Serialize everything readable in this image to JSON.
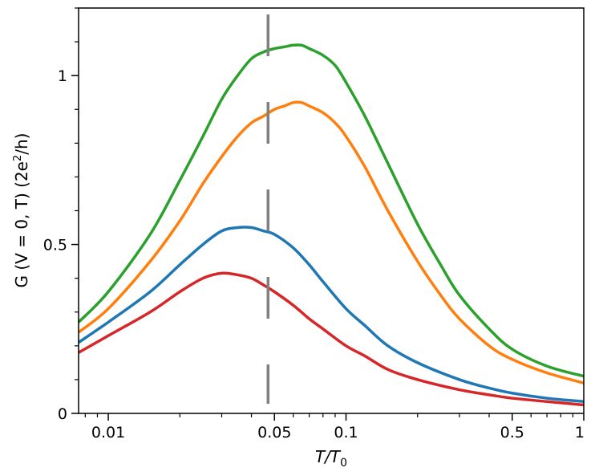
{
  "chart_data": {
    "type": "line",
    "xscale": "log",
    "xlim": [
      0.0075,
      1.0
    ],
    "ylim": [
      0,
      1.2
    ],
    "xlabel": {
      "main": "T/T",
      "sub": "0"
    },
    "ylabel": {
      "prefix": "G (V = 0, T) (2e",
      "sup": "2",
      "suffix": "/h)"
    },
    "xticks": [
      {
        "value": 0.01,
        "label": "0.01"
      },
      {
        "value": 0.05,
        "label": "0.05"
      },
      {
        "value": 0.1,
        "label": "0.1"
      },
      {
        "value": 0.5,
        "label": "0.5"
      },
      {
        "value": 1,
        "label": "1"
      }
    ],
    "yticks": [
      {
        "value": 0,
        "label": "0"
      },
      {
        "value": 0.5,
        "label": "0.5"
      },
      {
        "value": 1,
        "label": "1"
      }
    ],
    "grid": false,
    "legend": "none",
    "reference_line": {
      "x": 0.047,
      "style": "dashed",
      "color": "#808080"
    },
    "series": [
      {
        "color": "#2ca02c",
        "points": [
          [
            0.0075,
            0.27
          ],
          [
            0.01,
            0.36
          ],
          [
            0.015,
            0.53
          ],
          [
            0.02,
            0.69
          ],
          [
            0.025,
            0.82
          ],
          [
            0.03,
            0.93
          ],
          [
            0.035,
            1.0
          ],
          [
            0.04,
            1.05
          ],
          [
            0.045,
            1.07
          ],
          [
            0.05,
            1.08
          ],
          [
            0.055,
            1.085
          ],
          [
            0.06,
            1.09
          ],
          [
            0.065,
            1.09
          ],
          [
            0.07,
            1.08
          ],
          [
            0.08,
            1.06
          ],
          [
            0.09,
            1.03
          ],
          [
            0.1,
            0.98
          ],
          [
            0.12,
            0.88
          ],
          [
            0.15,
            0.74
          ],
          [
            0.2,
            0.56
          ],
          [
            0.25,
            0.44
          ],
          [
            0.3,
            0.35
          ],
          [
            0.4,
            0.25
          ],
          [
            0.5,
            0.19
          ],
          [
            0.7,
            0.14
          ],
          [
            1.0,
            0.11
          ]
        ]
      },
      {
        "color": "#ff7f0e",
        "points": [
          [
            0.0075,
            0.24
          ],
          [
            0.01,
            0.31
          ],
          [
            0.015,
            0.45
          ],
          [
            0.02,
            0.57
          ],
          [
            0.025,
            0.68
          ],
          [
            0.03,
            0.76
          ],
          [
            0.035,
            0.82
          ],
          [
            0.04,
            0.86
          ],
          [
            0.045,
            0.88
          ],
          [
            0.05,
            0.9
          ],
          [
            0.055,
            0.91
          ],
          [
            0.06,
            0.92
          ],
          [
            0.065,
            0.92
          ],
          [
            0.07,
            0.91
          ],
          [
            0.08,
            0.89
          ],
          [
            0.09,
            0.86
          ],
          [
            0.1,
            0.82
          ],
          [
            0.12,
            0.73
          ],
          [
            0.15,
            0.6
          ],
          [
            0.2,
            0.45
          ],
          [
            0.25,
            0.35
          ],
          [
            0.3,
            0.28
          ],
          [
            0.4,
            0.2
          ],
          [
            0.5,
            0.16
          ],
          [
            0.7,
            0.12
          ],
          [
            1.0,
            0.09
          ]
        ]
      },
      {
        "color": "#1f77b4",
        "points": [
          [
            0.0075,
            0.21
          ],
          [
            0.01,
            0.27
          ],
          [
            0.015,
            0.36
          ],
          [
            0.02,
            0.44
          ],
          [
            0.025,
            0.5
          ],
          [
            0.03,
            0.54
          ],
          [
            0.035,
            0.55
          ],
          [
            0.04,
            0.55
          ],
          [
            0.045,
            0.54
          ],
          [
            0.05,
            0.53
          ],
          [
            0.06,
            0.49
          ],
          [
            0.07,
            0.44
          ],
          [
            0.08,
            0.39
          ],
          [
            0.1,
            0.31
          ],
          [
            0.12,
            0.26
          ],
          [
            0.15,
            0.2
          ],
          [
            0.2,
            0.15
          ],
          [
            0.3,
            0.1
          ],
          [
            0.4,
            0.075
          ],
          [
            0.5,
            0.06
          ],
          [
            0.7,
            0.045
          ],
          [
            1.0,
            0.035
          ]
        ]
      },
      {
        "color": "#d62728",
        "points": [
          [
            0.0075,
            0.18
          ],
          [
            0.01,
            0.23
          ],
          [
            0.015,
            0.3
          ],
          [
            0.02,
            0.36
          ],
          [
            0.025,
            0.4
          ],
          [
            0.03,
            0.415
          ],
          [
            0.035,
            0.41
          ],
          [
            0.04,
            0.4
          ],
          [
            0.045,
            0.38
          ],
          [
            0.05,
            0.36
          ],
          [
            0.06,
            0.32
          ],
          [
            0.07,
            0.28
          ],
          [
            0.08,
            0.25
          ],
          [
            0.1,
            0.2
          ],
          [
            0.12,
            0.17
          ],
          [
            0.15,
            0.13
          ],
          [
            0.2,
            0.1
          ],
          [
            0.3,
            0.07
          ],
          [
            0.4,
            0.055
          ],
          [
            0.5,
            0.045
          ],
          [
            0.7,
            0.035
          ],
          [
            1.0,
            0.025
          ]
        ]
      }
    ]
  }
}
